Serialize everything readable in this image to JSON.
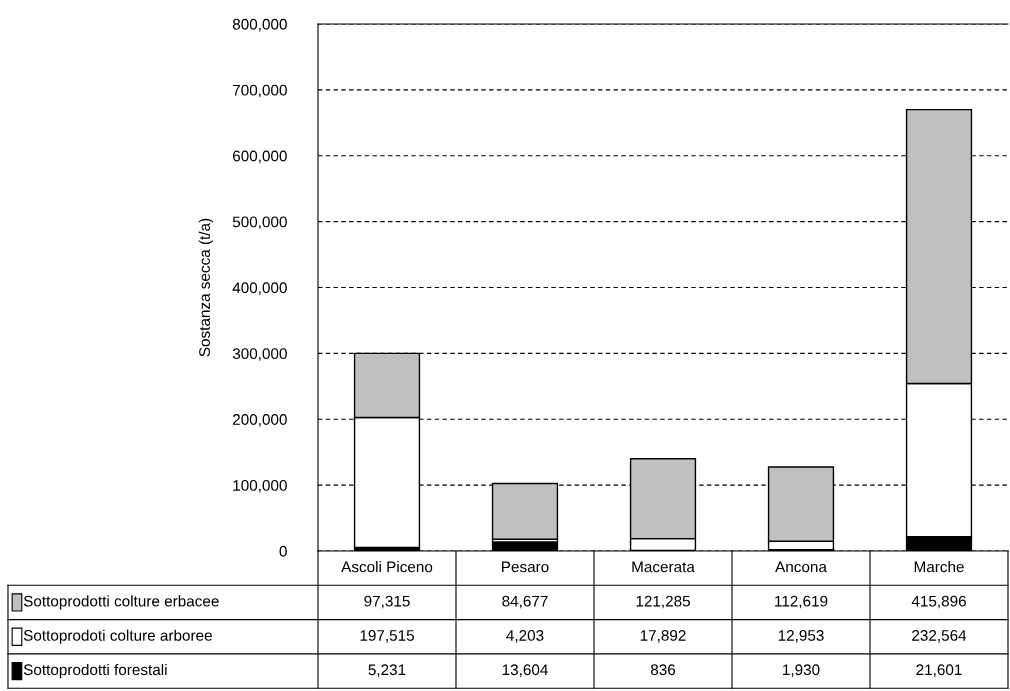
{
  "chart_data": {
    "type": "bar",
    "stacked": true,
    "ylabel": "Sostanza secca (t/a)",
    "categories": [
      "Ascoli Piceno",
      "Pesaro",
      "Macerata",
      "Ancona",
      "Marche"
    ],
    "series": [
      {
        "name": "Sottoprodotti forestali",
        "color": "#000000",
        "values": [
          5231,
          13604,
          836,
          1930,
          21601
        ],
        "value_labels": [
          "5,231",
          "13,604",
          "836",
          "1,930",
          "21,601"
        ]
      },
      {
        "name": "Sottoprodoti colture arboree",
        "color": "#ffffff",
        "values": [
          197515,
          4203,
          17892,
          12953,
          232564
        ],
        "value_labels": [
          "197,515",
          "4,203",
          "17,892",
          "12,953",
          "232,564"
        ]
      },
      {
        "name": "Sottoprodotti colture erbacee",
        "color": "#c0c0c0",
        "values": [
          97315,
          84677,
          121285,
          112619,
          415896
        ],
        "value_labels": [
          "97,315",
          "84,677",
          "121,285",
          "112,619",
          "415,896"
        ]
      }
    ],
    "ylim": [
      0,
      800000
    ],
    "yticks": [
      {
        "value": 0,
        "label": "0"
      },
      {
        "value": 100000,
        "label": "100,000"
      },
      {
        "value": 200000,
        "label": "200,000"
      },
      {
        "value": 300000,
        "label": "300,000"
      },
      {
        "value": 400000,
        "label": "400,000"
      },
      {
        "value": 500000,
        "label": "500,000"
      },
      {
        "value": 600000,
        "label": "600,000"
      },
      {
        "value": 700000,
        "label": "700,000"
      },
      {
        "value": 800000,
        "label": "800,000"
      }
    ],
    "grid": "y",
    "legend": "bottom"
  }
}
